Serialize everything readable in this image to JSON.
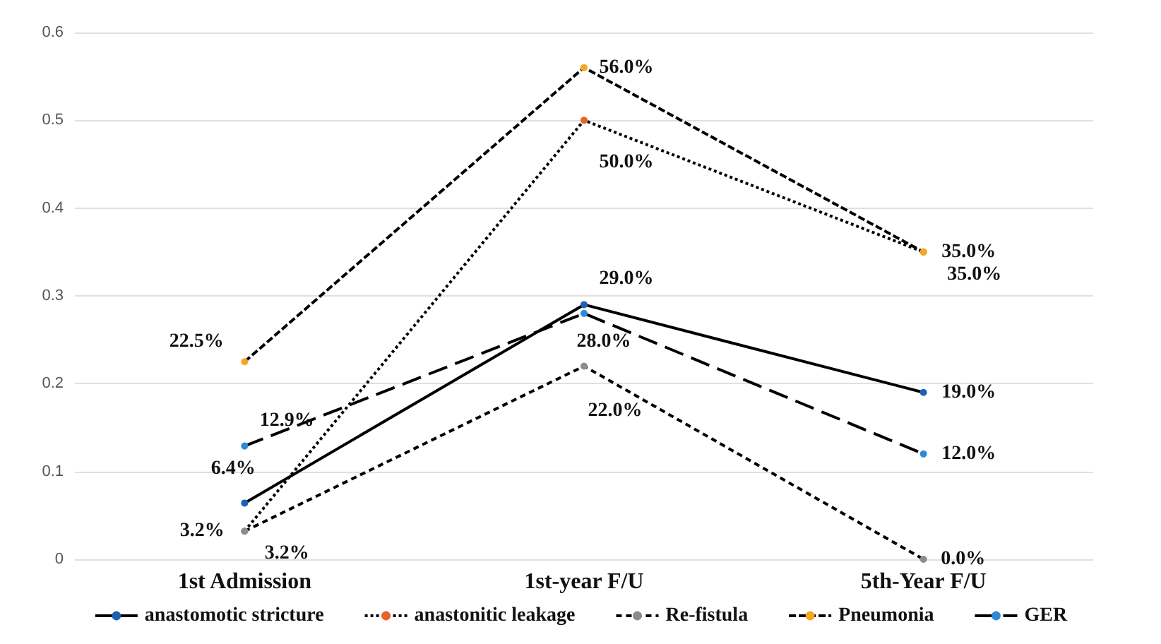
{
  "chart_data": {
    "type": "line",
    "categories": [
      "1st Admission",
      "1st-year F/U",
      "5th-Year F/U"
    ],
    "ylim": [
      0,
      0.6
    ],
    "yticks": [
      0,
      0.1,
      0.2,
      0.3,
      0.4,
      0.5,
      0.6
    ],
    "grid": "y",
    "legend": "bottom",
    "marker": "circle",
    "series": [
      {
        "name": "anastomotic stricture",
        "color": "#000000",
        "colors": [
          "#1f5fb4",
          "#1f5fb4",
          "#1f5fb4"
        ],
        "line_style": "solid",
        "values": [
          0.064,
          0.29,
          0.19
        ],
        "value_labels": [
          "6.4%",
          "29.0%",
          "19.0%"
        ]
      },
      {
        "name": "anastonitic leakage",
        "color": "#000000",
        "colors": [
          "#e8622c",
          "#e8622c",
          "#e8622c"
        ],
        "line_style": "dotted",
        "values": [
          0.032,
          0.5,
          0.35
        ],
        "value_labels": [
          "3.2%",
          "50.0%",
          "35.0%"
        ]
      },
      {
        "name": "Re-fistula",
        "color": "#000000",
        "colors": [
          "#8c8c8c",
          "#8c8c8c",
          "#8c8c8c"
        ],
        "line_style": "dashed",
        "values": [
          0.032,
          0.22,
          0.0
        ],
        "value_labels": [
          "3.2%",
          "22.0%",
          "0.0%"
        ]
      },
      {
        "name": "Pneumonia",
        "color": "#000000",
        "colors": [
          "#f5a623",
          "#f5a623",
          "#f5a623"
        ],
        "line_style": "dashed",
        "values": [
          0.225,
          0.56,
          0.35
        ],
        "value_labels": [
          "22.5%",
          "56.0%",
          "35.0%"
        ]
      },
      {
        "name": "GER",
        "color": "#000000",
        "colors": [
          "#2e8ad8",
          "#2e8ad8",
          "#2e8ad8"
        ],
        "line_style": "dashed",
        "values": [
          0.129,
          0.28,
          0.12
        ],
        "value_labels": [
          "12.9%",
          "28.0%",
          "12.0%"
        ]
      }
    ]
  }
}
